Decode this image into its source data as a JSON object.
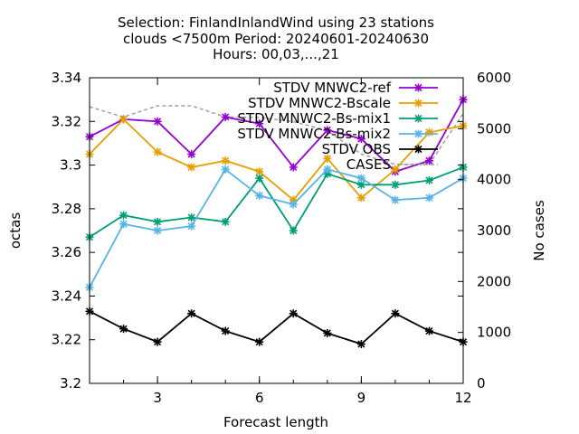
{
  "chart_data": {
    "type": "line",
    "title_lines": [
      "Selection: FinlandInlandWind using    23 stations",
      "clouds <7500m   Period: 20240601-20240630",
      "Hours: 00,03,...,21"
    ],
    "xlabel": "Forecast length",
    "ylabel": "octas",
    "y2label": "No cases",
    "xlim": [
      1,
      12
    ],
    "ylim": [
      3.2,
      3.34
    ],
    "y2lim": [
      0,
      6000
    ],
    "xticks": [
      3,
      6,
      9,
      12
    ],
    "yticks": [
      3.2,
      3.22,
      3.24,
      3.26,
      3.28,
      3.3,
      3.32,
      3.34
    ],
    "yticklabels": [
      "3.2",
      "3.22",
      "3.24",
      "3.26",
      "3.28",
      "3.3",
      "3.32",
      "3.34"
    ],
    "y2ticks": [
      0,
      1000,
      2000,
      3000,
      4000,
      5000,
      6000
    ],
    "legend_position": "top-right",
    "x": [
      1,
      2,
      3,
      4,
      5,
      6,
      7,
      8,
      9,
      10,
      11,
      12
    ],
    "series": [
      {
        "name": "STDV MNWC2-ref",
        "color": "#9400d3",
        "marker": "x",
        "axis": "y1",
        "values": [
          3.313,
          3.321,
          3.32,
          3.305,
          3.322,
          3.319,
          3.299,
          3.316,
          3.312,
          3.297,
          3.302,
          3.33
        ]
      },
      {
        "name": "STDV MNWC2-Bscale",
        "color": "#e69f00",
        "marker": "x",
        "axis": "y1",
        "values": [
          3.305,
          3.321,
          3.306,
          3.299,
          3.302,
          3.297,
          3.284,
          3.303,
          3.285,
          3.298,
          3.315,
          3.318
        ]
      },
      {
        "name": "STDV MNWC2-Bs-mix1",
        "color": "#009e73",
        "marker": "x",
        "axis": "y1",
        "values": [
          3.267,
          3.277,
          3.274,
          3.276,
          3.274,
          3.294,
          3.27,
          3.296,
          3.291,
          3.291,
          3.293,
          3.299
        ]
      },
      {
        "name": "STDV MNWC2-Bs-mix2",
        "color": "#56b4e9",
        "marker": "x",
        "axis": "y1",
        "values": [
          3.244,
          3.273,
          3.27,
          3.272,
          3.298,
          3.286,
          3.282,
          3.298,
          3.294,
          3.284,
          3.285,
          3.294
        ]
      },
      {
        "name": "STDV OBS",
        "color": "#000000",
        "marker": "x",
        "axis": "y1",
        "values": [
          3.233,
          3.225,
          3.219,
          3.232,
          3.224,
          3.219,
          3.232,
          3.223,
          3.218,
          3.232,
          3.224,
          3.219
        ]
      },
      {
        "name": "CASES",
        "color": "#a0a0a0",
        "marker": "none",
        "dash": true,
        "axis": "y2",
        "values": [
          5430,
          5230,
          5450,
          5450,
          5230,
          5220,
          5140,
          4960,
          4500,
          4300,
          4300,
          5300
        ]
      }
    ]
  }
}
